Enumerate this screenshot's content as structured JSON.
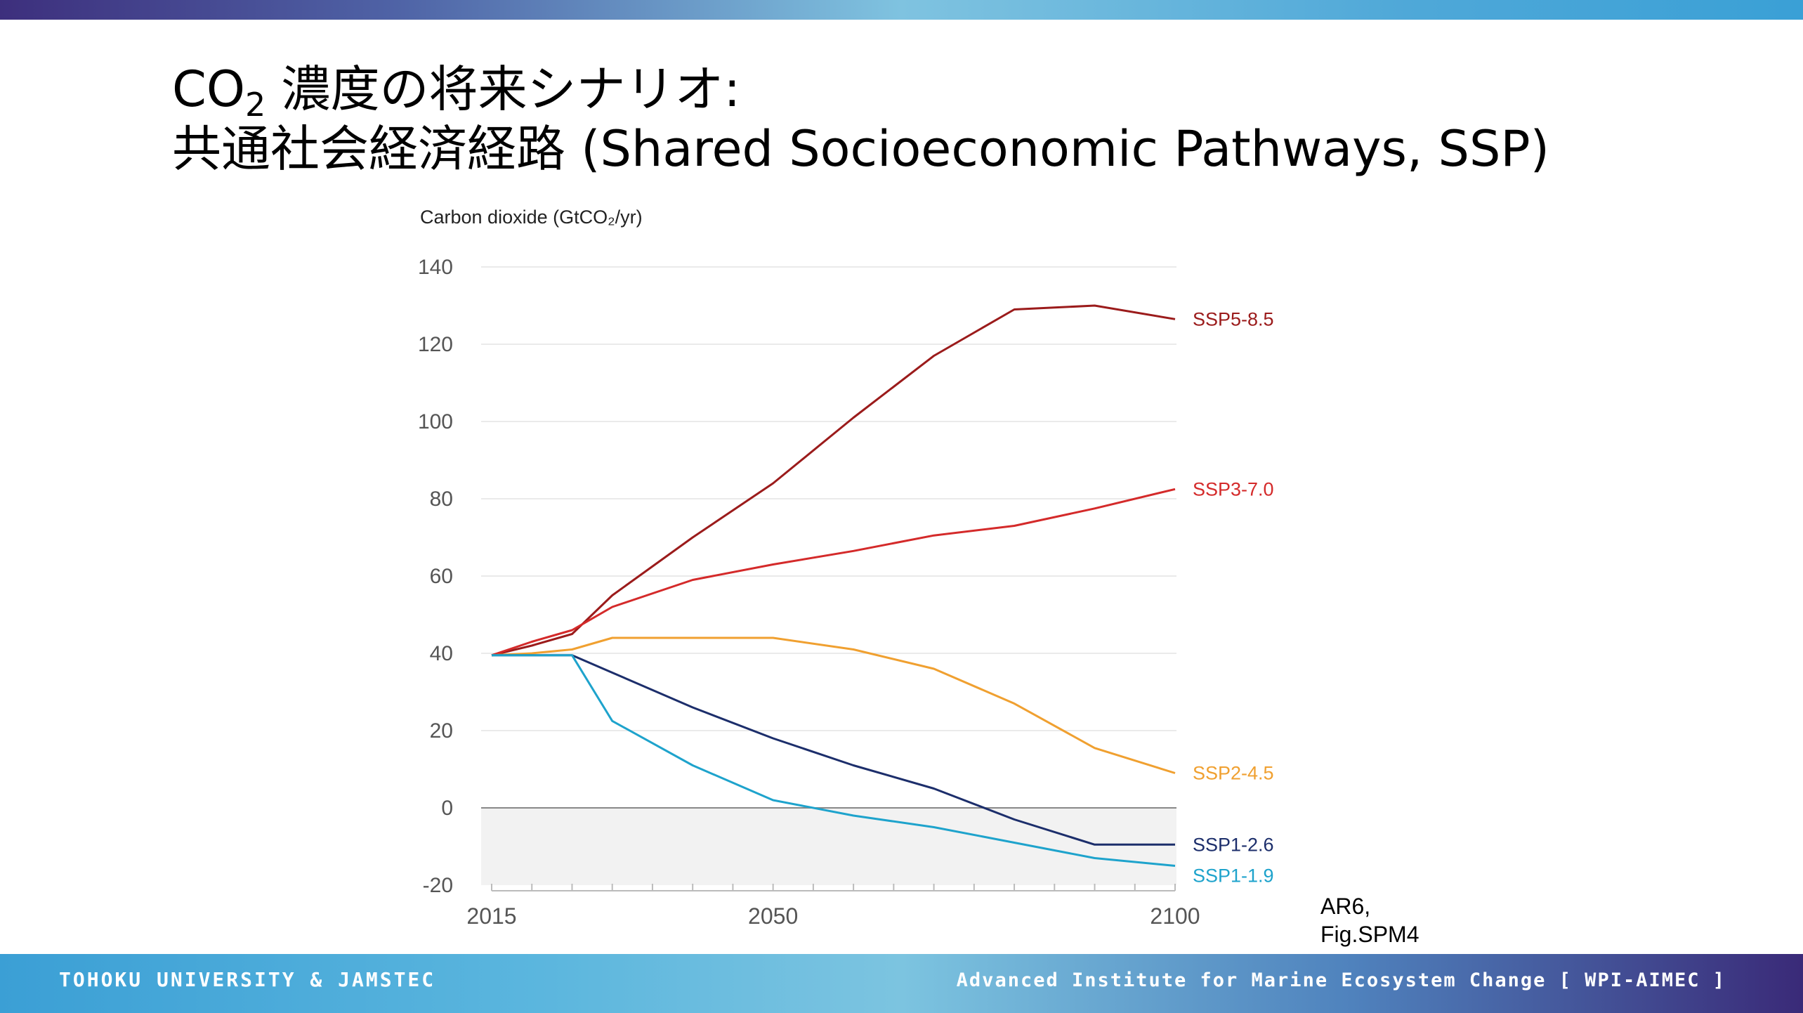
{
  "header": {
    "title_line1_pre": "CO",
    "title_line1_sub": "2",
    "title_line1_post": " 濃度の将来シナリオ:",
    "title_line2": "共通社会経済経路 (Shared Socioeconomic Pathways, SSP)"
  },
  "chart_data": {
    "type": "line",
    "ylabel": "Carbon dioxide (GtCO₂/yr)",
    "xlabel": "",
    "ylim": [
      -20,
      140
    ],
    "xlim": [
      2015,
      2100
    ],
    "yticks": [
      -20,
      0,
      20,
      40,
      60,
      80,
      100,
      120,
      140
    ],
    "xticks": [
      2015,
      2050,
      2100
    ],
    "grid": true,
    "negative_region_shaded": true,
    "legend": "labels at right end of each line",
    "series": [
      {
        "name": "SSP5-8.5",
        "color": "#9b1b1b",
        "points": [
          [
            2015,
            39.5
          ],
          [
            2020,
            42
          ],
          [
            2025,
            45
          ],
          [
            2030,
            55
          ],
          [
            2040,
            70
          ],
          [
            2050,
            84
          ],
          [
            2060,
            101
          ],
          [
            2070,
            117
          ],
          [
            2080,
            129
          ],
          [
            2085,
            129.5
          ],
          [
            2090,
            130
          ],
          [
            2100,
            126.5
          ]
        ]
      },
      {
        "name": "SSP3-7.0",
        "color": "#d42a2a",
        "points": [
          [
            2015,
            39.5
          ],
          [
            2020,
            43
          ],
          [
            2025,
            46
          ],
          [
            2030,
            52
          ],
          [
            2040,
            59
          ],
          [
            2050,
            63
          ],
          [
            2060,
            66.5
          ],
          [
            2070,
            70.5
          ],
          [
            2080,
            73
          ],
          [
            2090,
            77.5
          ],
          [
            2100,
            82.5
          ]
        ]
      },
      {
        "name": "SSP2-4.5",
        "color": "#f0a030",
        "points": [
          [
            2015,
            39.5
          ],
          [
            2020,
            40
          ],
          [
            2025,
            41
          ],
          [
            2030,
            44
          ],
          [
            2040,
            44
          ],
          [
            2050,
            44
          ],
          [
            2060,
            41
          ],
          [
            2070,
            36
          ],
          [
            2080,
            27
          ],
          [
            2090,
            15.5
          ],
          [
            2100,
            9
          ]
        ]
      },
      {
        "name": "SSP1-2.6",
        "color": "#1c2e6b",
        "points": [
          [
            2015,
            39.5
          ],
          [
            2020,
            39.5
          ],
          [
            2025,
            39.5
          ],
          [
            2030,
            35
          ],
          [
            2040,
            26
          ],
          [
            2050,
            18
          ],
          [
            2060,
            11
          ],
          [
            2070,
            5
          ],
          [
            2080,
            -3
          ],
          [
            2090,
            -9.5
          ],
          [
            2100,
            -9.5
          ]
        ]
      },
      {
        "name": "SSP1-1.9",
        "color": "#1ea3cc",
        "points": [
          [
            2015,
            39.5
          ],
          [
            2020,
            39.5
          ],
          [
            2025,
            39.5
          ],
          [
            2030,
            22.5
          ],
          [
            2040,
            11
          ],
          [
            2050,
            2
          ],
          [
            2060,
            -2
          ],
          [
            2070,
            -5
          ],
          [
            2080,
            -9
          ],
          [
            2090,
            -13
          ],
          [
            2100,
            -15
          ]
        ]
      }
    ]
  },
  "source": {
    "line1": "AR6,",
    "line2": "Fig.SPM4"
  },
  "footer": {
    "left": "TOHOKU UNIVERSITY & JAMSTEC",
    "right": "Advanced Institute for Marine Ecosystem Change [ WPI-AIMEC ]"
  }
}
